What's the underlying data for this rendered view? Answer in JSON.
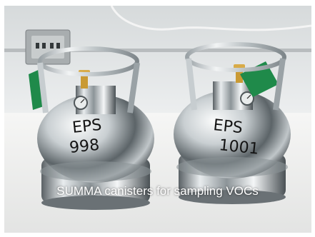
{
  "caption": "SUMMA canisters for sampling VOCs",
  "left_canister_marking": {
    "line1": "EPS",
    "line2": "998"
  },
  "right_canister_marking": {
    "line1": "EPS",
    "line2": "1001"
  },
  "colors": {
    "wall": "#e4e7e8",
    "table": "#f2f2f1",
    "steel_dark": "#4d5357",
    "steel_light": "#eef1f2",
    "tag_green": "#1f8a4a",
    "valve_brass": "#c99a34",
    "caption_text": "#ffffff"
  }
}
